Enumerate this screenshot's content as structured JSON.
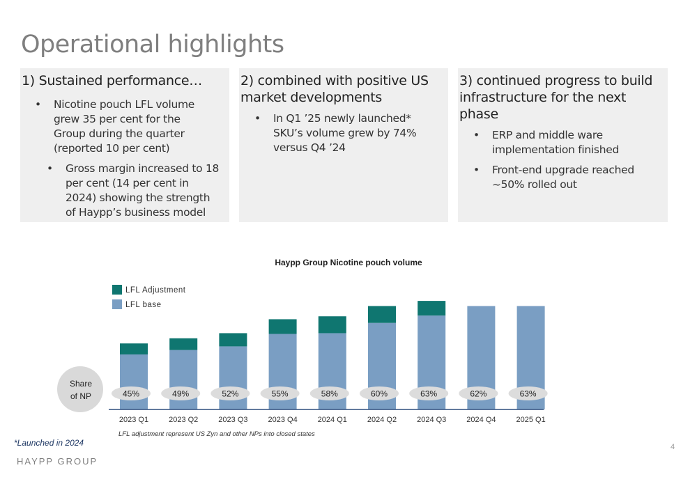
{
  "page": {
    "title": "Operational highlights",
    "launched_note": "*Launched in 2024",
    "brand": "HAYPP GROUP",
    "page_number": "4"
  },
  "boxes": [
    {
      "heading": "1) Sustained performance…",
      "bullets": [
        "Nicotine pouch LFL volume grew 35 per cent for the Group during the quarter (reported 10 per cent)",
        "Gross margin increased to 18 per cent (14 per cent in 2024) showing the strength of Haypp’s business model"
      ]
    },
    {
      "heading": "2) combined with positive US market developments",
      "bullets": [
        "In Q1 ’25 newly launched* SKU’s volume grew by 74% versus Q4 ’24"
      ]
    },
    {
      "heading": "3) continued progress to build infrastructure for the next phase",
      "bullets": [
        "ERP and middle ware implementation finished",
        "Front-end upgrade reached ~50% rolled out"
      ]
    }
  ],
  "chart_data": {
    "type": "bar",
    "stacked": true,
    "title": "Haypp Group Nicotine pouch volume",
    "categories": [
      "2023 Q1",
      "2023 Q2",
      "2023 Q3",
      "2023 Q4",
      "2024 Q1",
      "2024 Q2",
      "2024 Q3",
      "2024 Q4",
      "2025 Q1"
    ],
    "series": [
      {
        "name": "LFL base",
        "color": "#7a9ec3",
        "values": [
          75,
          81,
          86,
          103,
          104,
          118,
          128,
          141,
          141
        ]
      },
      {
        "name": "LFL Adjustment",
        "color": "#0f7670",
        "values": [
          15,
          16,
          18,
          20,
          23,
          23,
          20,
          0,
          0
        ]
      }
    ],
    "legend": [
      "LFL Adjustment",
      "LFL base"
    ],
    "legend_position": "top-left",
    "share_label": "Share of NP",
    "share_values": [
      "45%",
      "49%",
      "52%",
      "55%",
      "58%",
      "60%",
      "63%",
      "62%",
      "63%"
    ],
    "ylim": [
      0,
      150
    ],
    "footnote": "LFL adjustment represent US Zyn and other NPs into closed states",
    "xlabel": "",
    "ylabel": ""
  }
}
